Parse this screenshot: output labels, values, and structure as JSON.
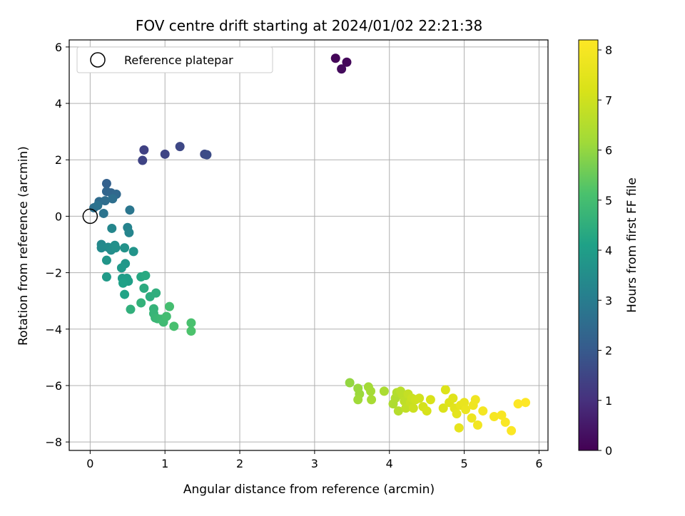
{
  "chart_data": {
    "type": "scatter",
    "title": "FOV centre drift starting at 2024/01/02 22:21:38",
    "xlabel": "Angular distance from reference (arcmin)",
    "ylabel": "Rotation from reference (arcmin)",
    "xlim": [
      -0.28,
      6.12
    ],
    "ylim": [
      -8.3,
      6.25
    ],
    "xticks": [
      0,
      1,
      2,
      3,
      4,
      5,
      6
    ],
    "yticks": [
      -8,
      -6,
      -4,
      -2,
      0,
      2,
      4,
      6
    ],
    "grid": true,
    "legend": {
      "placement": "top-left",
      "entries": [
        "Reference platepar"
      ]
    },
    "reference_point": {
      "x": 0,
      "y": 0
    },
    "colorbar": {
      "label": "Hours from first FF file",
      "range": [
        0,
        8.2
      ],
      "ticks": [
        0,
        1,
        2,
        3,
        4,
        5,
        6,
        7,
        8
      ],
      "colormap": "viridis"
    },
    "points": [
      [
        3.28,
        5.6,
        0.1
      ],
      [
        3.43,
        5.46,
        0.15
      ],
      [
        3.36,
        5.22,
        0.2
      ],
      [
        0.72,
        2.35,
        1.4
      ],
      [
        0.7,
        1.98,
        1.45
      ],
      [
        1.0,
        2.2,
        1.5
      ],
      [
        1.2,
        2.47,
        1.55
      ],
      [
        1.53,
        2.2,
        1.6
      ],
      [
        1.56,
        2.18,
        1.65
      ],
      [
        0.22,
        1.16,
        2.2
      ],
      [
        0.22,
        0.88,
        2.3
      ],
      [
        0.28,
        0.83,
        2.35
      ],
      [
        0.35,
        0.78,
        2.4
      ],
      [
        0.12,
        0.52,
        2.5
      ],
      [
        0.2,
        0.55,
        2.55
      ],
      [
        0.3,
        0.62,
        2.6
      ],
      [
        0.05,
        0.3,
        2.65
      ],
      [
        0.1,
        0.38,
        2.7
      ],
      [
        0.18,
        0.1,
        2.75
      ],
      [
        0.53,
        0.22,
        2.8
      ],
      [
        0.5,
        -0.4,
        3.2
      ],
      [
        0.52,
        -0.58,
        3.25
      ],
      [
        0.29,
        -0.43,
        3.3
      ],
      [
        0.15,
        -1.0,
        3.35
      ],
      [
        0.15,
        -1.12,
        3.4
      ],
      [
        0.24,
        -1.1,
        3.45
      ],
      [
        0.28,
        -1.2,
        3.5
      ],
      [
        0.33,
        -1.03,
        3.55
      ],
      [
        0.34,
        -1.12,
        3.6
      ],
      [
        0.46,
        -1.12,
        3.65
      ],
      [
        0.58,
        -1.25,
        3.7
      ],
      [
        0.22,
        -1.56,
        3.75
      ],
      [
        0.47,
        -1.68,
        3.8
      ],
      [
        0.42,
        -1.83,
        3.85
      ],
      [
        0.22,
        -2.15,
        3.9
      ],
      [
        0.43,
        -2.2,
        3.95
      ],
      [
        0.49,
        -2.2,
        4.0
      ],
      [
        0.51,
        -2.3,
        4.05
      ],
      [
        0.44,
        -2.37,
        4.1
      ],
      [
        0.46,
        -2.77,
        4.15
      ],
      [
        0.68,
        -2.15,
        4.3
      ],
      [
        0.74,
        -2.1,
        4.35
      ],
      [
        0.72,
        -2.55,
        4.4
      ],
      [
        0.8,
        -2.85,
        4.45
      ],
      [
        0.88,
        -2.72,
        4.5
      ],
      [
        0.54,
        -3.3,
        4.55
      ],
      [
        0.68,
        -3.07,
        4.6
      ],
      [
        0.85,
        -3.28,
        4.65
      ],
      [
        0.85,
        -3.45,
        4.7
      ],
      [
        0.87,
        -3.6,
        4.75
      ],
      [
        0.9,
        -3.63,
        4.8
      ],
      [
        0.95,
        -3.65,
        4.85
      ],
      [
        0.98,
        -3.75,
        4.9
      ],
      [
        1.02,
        -3.55,
        4.95
      ],
      [
        1.06,
        -3.2,
        5.0
      ],
      [
        1.12,
        -3.9,
        5.05
      ],
      [
        1.35,
        -3.78,
        5.1
      ],
      [
        1.35,
        -4.07,
        5.15
      ],
      [
        3.47,
        -5.9,
        6.0
      ],
      [
        3.58,
        -6.1,
        6.05
      ],
      [
        3.6,
        -6.3,
        6.1
      ],
      [
        3.58,
        -6.5,
        6.15
      ],
      [
        3.72,
        -6.05,
        6.2
      ],
      [
        3.75,
        -6.2,
        6.25
      ],
      [
        3.76,
        -6.5,
        6.3
      ],
      [
        3.93,
        -6.2,
        6.35
      ],
      [
        4.05,
        -6.65,
        6.4
      ],
      [
        4.08,
        -6.45,
        6.45
      ],
      [
        4.1,
        -6.25,
        6.5
      ],
      [
        4.12,
        -6.9,
        6.55
      ],
      [
        4.15,
        -6.2,
        6.6
      ],
      [
        4.18,
        -6.35,
        6.65
      ],
      [
        4.2,
        -6.55,
        6.7
      ],
      [
        4.22,
        -6.8,
        6.75
      ],
      [
        4.25,
        -6.3,
        6.8
      ],
      [
        4.28,
        -6.6,
        6.85
      ],
      [
        4.3,
        -6.45,
        6.9
      ],
      [
        4.32,
        -6.8,
        6.95
      ],
      [
        4.35,
        -6.5,
        7.0
      ],
      [
        4.4,
        -6.45,
        7.05
      ],
      [
        4.45,
        -6.75,
        7.1
      ],
      [
        4.5,
        -6.9,
        7.15
      ],
      [
        4.55,
        -6.5,
        7.2
      ],
      [
        4.72,
        -6.8,
        7.25
      ],
      [
        4.75,
        -6.15,
        7.3
      ],
      [
        4.8,
        -6.6,
        7.35
      ],
      [
        4.85,
        -6.45,
        7.4
      ],
      [
        4.87,
        -6.8,
        7.45
      ],
      [
        4.9,
        -7.0,
        7.5
      ],
      [
        4.93,
        -7.5,
        7.55
      ],
      [
        4.95,
        -6.7,
        7.6
      ],
      [
        5.0,
        -6.6,
        7.65
      ],
      [
        5.02,
        -6.85,
        7.7
      ],
      [
        5.1,
        -7.15,
        7.75
      ],
      [
        5.12,
        -6.7,
        7.8
      ],
      [
        5.15,
        -6.5,
        7.85
      ],
      [
        5.18,
        -7.4,
        7.9
      ],
      [
        5.25,
        -6.9,
        7.95
      ],
      [
        5.4,
        -7.1,
        8.0
      ],
      [
        5.5,
        -7.05,
        8.05
      ],
      [
        5.55,
        -7.3,
        8.1
      ],
      [
        5.63,
        -7.6,
        8.15
      ],
      [
        5.72,
        -6.65,
        8.17
      ],
      [
        5.82,
        -6.6,
        8.2
      ]
    ]
  },
  "colors": {
    "axis": "#000000",
    "grid": "#b0b0b0",
    "legend_border": "#cccccc",
    "reference_marker": "#000000"
  }
}
